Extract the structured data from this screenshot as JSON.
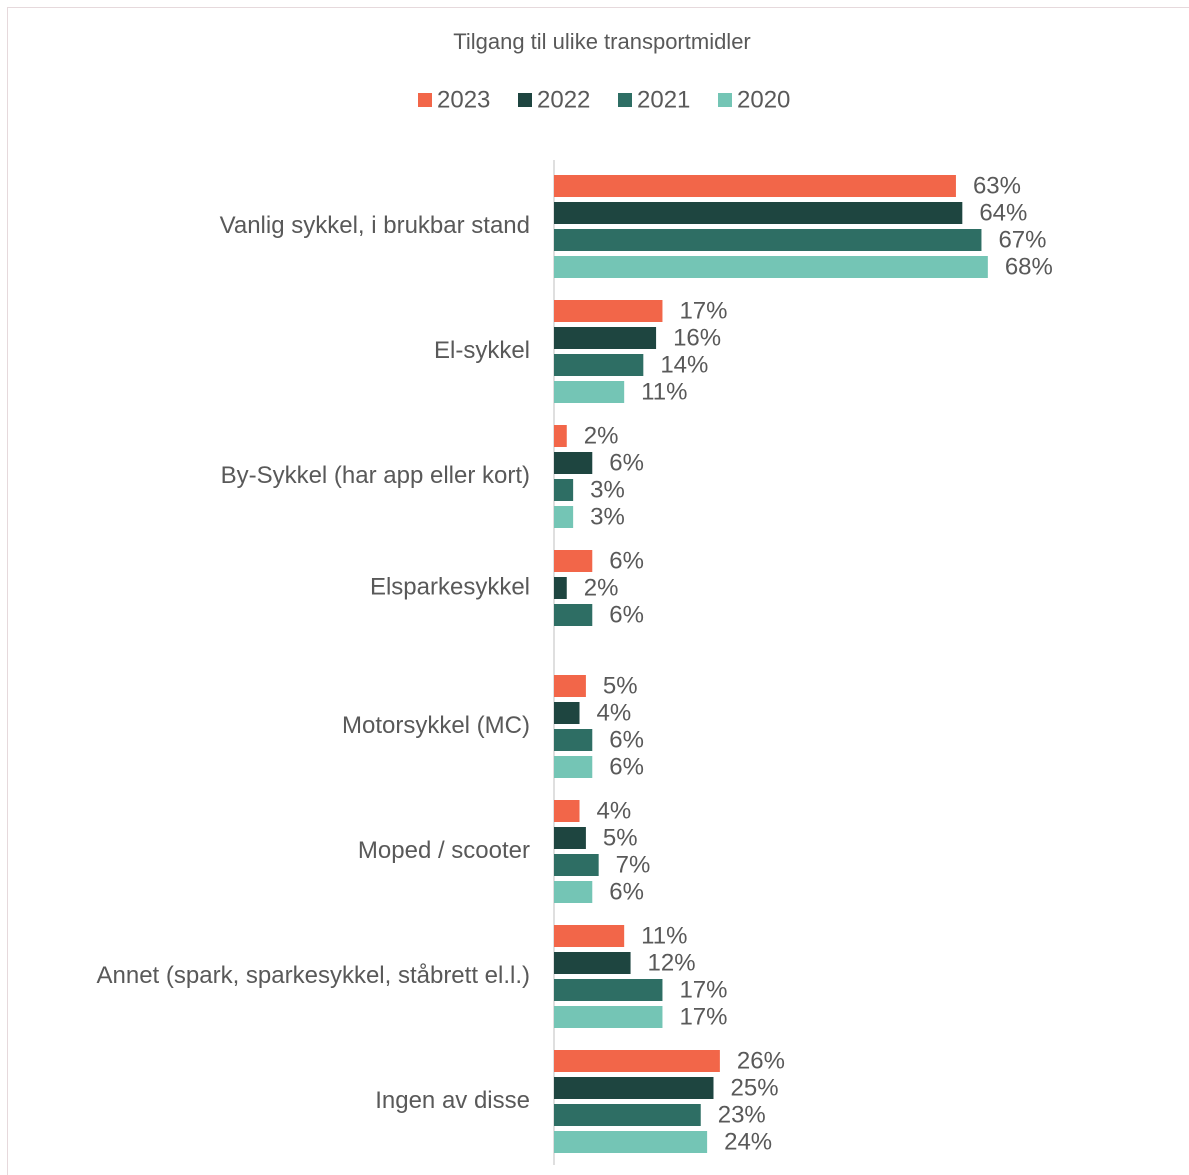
{
  "chart_data": {
    "type": "bar",
    "orientation": "horizontal",
    "title": "Tilgang til ulike transportmidler",
    "categories": [
      "Vanlig sykkel, i brukbar stand",
      "El-sykkel",
      "By-Sykkel (har app eller kort)",
      "Elsparkesykkel",
      "Motorsykkel (MC)",
      "Moped / scooter",
      "Annet (spark, sparkesykkel, ståbrett el.l.)",
      "Ingen av disse"
    ],
    "series": [
      {
        "name": "2023",
        "color": "#f26649",
        "values": [
          63,
          17,
          2,
          6,
          5,
          4,
          11,
          26
        ],
        "value_labels": [
          "63%",
          "17%",
          "2%",
          "6%",
          "5%",
          "4%",
          "11%",
          "26%"
        ]
      },
      {
        "name": "2022",
        "color": "#1e4540",
        "values": [
          64,
          16,
          6,
          2,
          4,
          5,
          12,
          25
        ],
        "value_labels": [
          "64%",
          "16%",
          "6%",
          "2%",
          "4%",
          "5%",
          "12%",
          "25%"
        ]
      },
      {
        "name": "2021",
        "color": "#2e6e64",
        "values": [
          67,
          14,
          3,
          6,
          6,
          7,
          17,
          23
        ],
        "value_labels": [
          "67%",
          "14%",
          "3%",
          "6%",
          "6%",
          "7%",
          "17%",
          "23%"
        ]
      },
      {
        "name": "2020",
        "color": "#74c5b5",
        "values": [
          68,
          11,
          3,
          null,
          6,
          6,
          17,
          24
        ],
        "value_labels": [
          "68%",
          "11%",
          "3%",
          null,
          "6%",
          "6%",
          "17%",
          "24%"
        ]
      }
    ],
    "legend": "top"
  }
}
